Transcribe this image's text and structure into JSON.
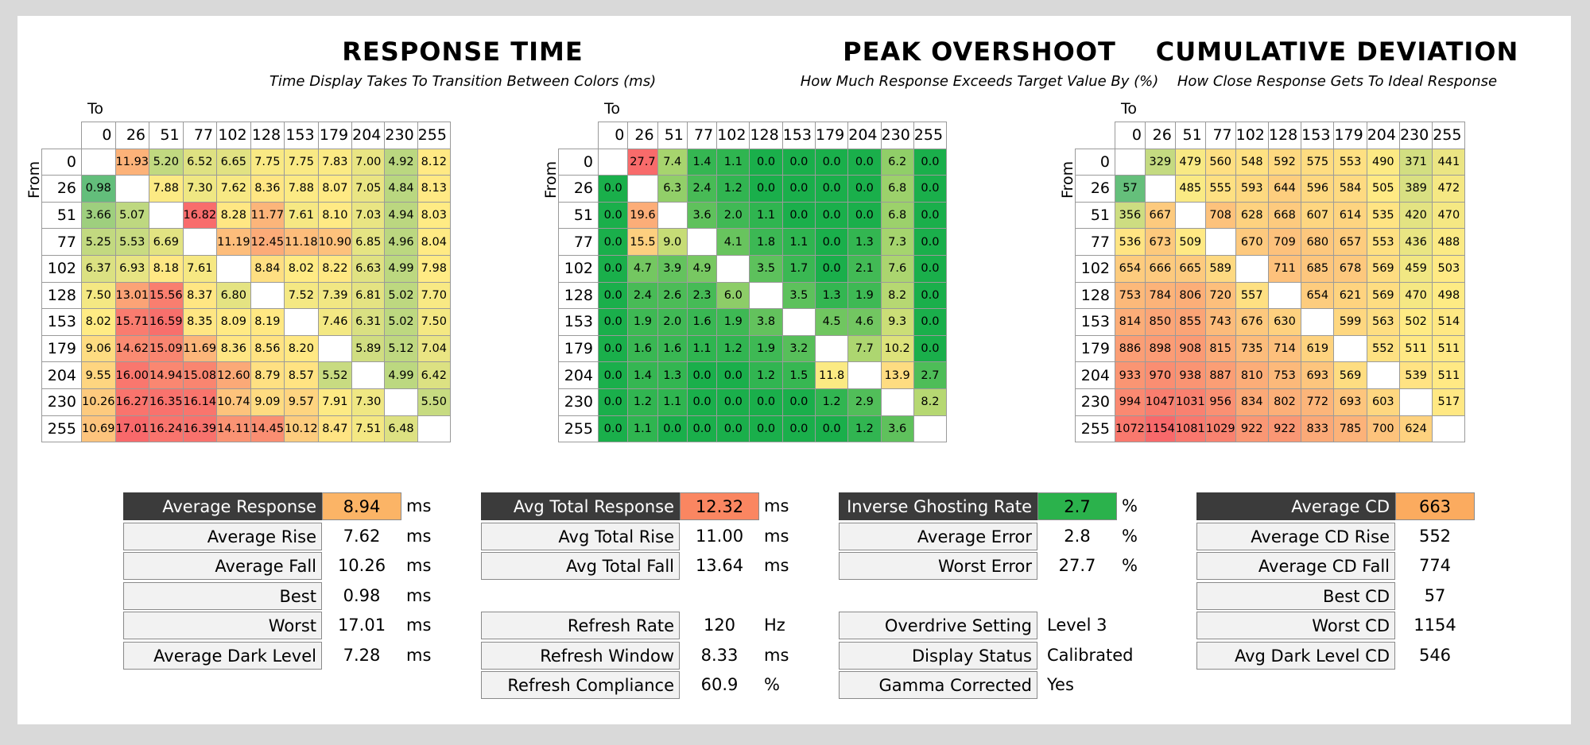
{
  "chart_data": [
    {
      "type": "heatmap",
      "title": "RESPONSE TIME",
      "subtitle": "Time Display Takes To Transition Between Colors (ms)",
      "xlabel": "To",
      "ylabel": "From",
      "levels": [
        "0",
        "26",
        "51",
        "77",
        "102",
        "128",
        "153",
        "179",
        "204",
        "230",
        "255"
      ],
      "values": [
        [
          null,
          "11.93",
          "5.20",
          "6.52",
          "6.65",
          "7.75",
          "7.75",
          "7.83",
          "7.00",
          "4.92",
          "8.12"
        ],
        [
          "0.98",
          null,
          "7.88",
          "7.30",
          "7.62",
          "8.36",
          "7.88",
          "8.07",
          "7.05",
          "4.84",
          "8.13"
        ],
        [
          "3.66",
          "5.07",
          null,
          "16.82",
          "8.28",
          "11.77",
          "7.61",
          "8.10",
          "7.03",
          "4.94",
          "8.03"
        ],
        [
          "5.25",
          "5.53",
          "6.69",
          null,
          "11.19",
          "12.45",
          "11.18",
          "10.90",
          "6.85",
          "4.96",
          "8.04"
        ],
        [
          "6.37",
          "6.93",
          "8.18",
          "7.61",
          null,
          "8.84",
          "8.02",
          "8.22",
          "6.63",
          "4.99",
          "7.98"
        ],
        [
          "7.50",
          "13.01",
          "15.56",
          "8.37",
          "6.80",
          null,
          "7.52",
          "7.39",
          "6.81",
          "5.02",
          "7.70"
        ],
        [
          "8.02",
          "15.71",
          "16.59",
          "8.35",
          "8.09",
          "8.19",
          null,
          "7.46",
          "6.31",
          "5.02",
          "7.50"
        ],
        [
          "9.06",
          "14.62",
          "15.09",
          "11.69",
          "8.36",
          "8.56",
          "8.20",
          null,
          "5.89",
          "5.12",
          "7.04"
        ],
        [
          "9.55",
          "16.00",
          "14.94",
          "15.08",
          "12.60",
          "8.79",
          "8.57",
          "5.52",
          null,
          "4.99",
          "6.42"
        ],
        [
          "10.26",
          "16.27",
          "16.35",
          "16.14",
          "10.74",
          "9.09",
          "9.57",
          "7.91",
          "7.30",
          null,
          "5.50"
        ],
        [
          "10.69",
          "17.01",
          "16.24",
          "16.39",
          "14.11",
          "14.45",
          "10.12",
          "8.47",
          "7.51",
          "6.48",
          null
        ]
      ],
      "color_scale": {
        "low": "#63be7b",
        "mid": "#ffeb84",
        "high": "#f8696b",
        "min": 1,
        "mid_value": 8,
        "max": 17
      }
    },
    {
      "type": "heatmap",
      "title": "PEAK OVERSHOOT",
      "subtitle": "How Much Response Exceeds Target Value By (%)",
      "xlabel": "To",
      "ylabel": "From",
      "levels": [
        "0",
        "26",
        "51",
        "77",
        "102",
        "128",
        "153",
        "179",
        "204",
        "230",
        "255"
      ],
      "values": [
        [
          null,
          "27.7",
          "7.4",
          "1.4",
          "1.1",
          "0.0",
          "0.0",
          "0.0",
          "0.0",
          "6.2",
          "0.0"
        ],
        [
          "0.0",
          null,
          "6.3",
          "2.4",
          "1.2",
          "0.0",
          "0.0",
          "0.0",
          "0.0",
          "6.8",
          "0.0"
        ],
        [
          "0.0",
          "19.6",
          null,
          "3.6",
          "2.0",
          "1.1",
          "0.0",
          "0.0",
          "0.0",
          "6.8",
          "0.0"
        ],
        [
          "0.0",
          "15.5",
          "9.0",
          null,
          "4.1",
          "1.8",
          "1.1",
          "0.0",
          "1.3",
          "7.3",
          "0.0"
        ],
        [
          "0.0",
          "4.7",
          "3.9",
          "4.9",
          null,
          "3.5",
          "1.7",
          "0.0",
          "2.1",
          "7.6",
          "0.0"
        ],
        [
          "0.0",
          "2.4",
          "2.6",
          "2.3",
          "6.0",
          null,
          "3.5",
          "1.3",
          "1.9",
          "8.2",
          "0.0"
        ],
        [
          "0.0",
          "1.9",
          "2.0",
          "1.6",
          "1.9",
          "3.8",
          null,
          "4.5",
          "4.6",
          "9.3",
          "0.0"
        ],
        [
          "0.0",
          "1.6",
          "1.6",
          "1.1",
          "1.2",
          "1.9",
          "3.2",
          null,
          "7.7",
          "10.2",
          "0.0"
        ],
        [
          "0.0",
          "1.4",
          "1.3",
          "0.0",
          "0.0",
          "1.2",
          "1.5",
          "11.8",
          null,
          "13.9",
          "2.7"
        ],
        [
          "0.0",
          "1.2",
          "1.1",
          "0.0",
          "0.0",
          "0.0",
          "0.0",
          "1.2",
          "2.9",
          null,
          "8.2"
        ],
        [
          "0.0",
          "1.1",
          "0.0",
          "0.0",
          "0.0",
          "0.0",
          "0.0",
          "0.0",
          "1.2",
          "3.6",
          null
        ]
      ],
      "color_scale": {
        "low": "#1aaf4b",
        "mid": "#ffeb84",
        "high": "#f8696b",
        "min": 0,
        "mid_value": 12,
        "max": 28
      }
    },
    {
      "type": "heatmap",
      "title": "CUMULATIVE DEVIATION",
      "subtitle": "How Close Response Gets To Ideal Response",
      "xlabel": "To",
      "ylabel": "From",
      "levels": [
        "0",
        "26",
        "51",
        "77",
        "102",
        "128",
        "153",
        "179",
        "204",
        "230",
        "255"
      ],
      "values": [
        [
          null,
          "329",
          "479",
          "560",
          "548",
          "592",
          "575",
          "553",
          "490",
          "371",
          "441"
        ],
        [
          "57",
          null,
          "485",
          "555",
          "593",
          "644",
          "596",
          "584",
          "505",
          "389",
          "472"
        ],
        [
          "356",
          "667",
          null,
          "708",
          "628",
          "668",
          "607",
          "614",
          "535",
          "420",
          "470"
        ],
        [
          "536",
          "673",
          "509",
          null,
          "670",
          "709",
          "680",
          "657",
          "553",
          "436",
          "488"
        ],
        [
          "654",
          "666",
          "665",
          "589",
          null,
          "711",
          "685",
          "678",
          "569",
          "459",
          "503"
        ],
        [
          "753",
          "784",
          "806",
          "720",
          "557",
          null,
          "654",
          "621",
          "569",
          "470",
          "498"
        ],
        [
          "814",
          "850",
          "855",
          "743",
          "676",
          "630",
          null,
          "599",
          "563",
          "502",
          "514"
        ],
        [
          "886",
          "898",
          "908",
          "815",
          "735",
          "714",
          "619",
          null,
          "552",
          "511",
          "511"
        ],
        [
          "933",
          "970",
          "938",
          "887",
          "810",
          "753",
          "693",
          "569",
          null,
          "539",
          "511"
        ],
        [
          "994",
          "1047",
          "1031",
          "956",
          "834",
          "802",
          "772",
          "693",
          "603",
          null,
          "517"
        ],
        [
          "1072",
          "1154",
          "1081",
          "1029",
          "922",
          "922",
          "833",
          "785",
          "700",
          "624",
          null
        ]
      ],
      "color_scale": {
        "low": "#63be7b",
        "mid": "#ffeb84",
        "high": "#f8696b",
        "min": 50,
        "mid_value": 500,
        "max": 1154
      }
    }
  ],
  "stats": {
    "response": {
      "rows": [
        {
          "label": "Average Response",
          "value": "8.94",
          "unit": "ms",
          "main": true,
          "color": "#fbb466"
        },
        {
          "label": "Average Rise",
          "value": "7.62",
          "unit": "ms"
        },
        {
          "label": "Average Fall",
          "value": "10.26",
          "unit": "ms"
        },
        {
          "label": "Best",
          "value": "0.98",
          "unit": "ms"
        },
        {
          "label": "Worst",
          "value": "17.01",
          "unit": "ms"
        },
        {
          "label": "Average Dark Level",
          "value": "7.28",
          "unit": "ms"
        }
      ]
    },
    "total": {
      "rows": [
        {
          "label": "Avg Total Response",
          "value": "12.32",
          "unit": "ms",
          "main": true,
          "color": "#fa8661"
        },
        {
          "label": "Avg Total Rise",
          "value": "11.00",
          "unit": "ms"
        },
        {
          "label": "Avg Total Fall",
          "value": "13.64",
          "unit": "ms"
        }
      ],
      "refresh_rows": [
        {
          "label": "Refresh Rate",
          "value": "120",
          "unit": "Hz"
        },
        {
          "label": "Refresh Window",
          "value": "8.33",
          "unit": "ms"
        },
        {
          "label": "Refresh Compliance",
          "value": "60.9",
          "unit": "%"
        }
      ]
    },
    "overshoot": {
      "rows": [
        {
          "label": "Inverse Ghosting Rate",
          "value": "2.7",
          "unit": "%",
          "main": true,
          "color": "#2bb24c"
        },
        {
          "label": "Average Error",
          "value": "2.8",
          "unit": "%"
        },
        {
          "label": "Worst Error",
          "value": "27.7",
          "unit": "%"
        }
      ],
      "settings_rows": [
        {
          "label": "Overdrive Setting",
          "value": "Level 3"
        },
        {
          "label": "Display Status",
          "value": "Calibrated"
        },
        {
          "label": "Gamma Corrected",
          "value": "Yes"
        }
      ]
    },
    "cd": {
      "rows": [
        {
          "label": "Average CD",
          "value": "663",
          "main": true,
          "color": "#fbab5f"
        },
        {
          "label": "Average CD Rise",
          "value": "552"
        },
        {
          "label": "Average CD Fall",
          "value": "774"
        },
        {
          "label": "Best CD",
          "value": "57"
        },
        {
          "label": "Worst CD",
          "value": "1154"
        },
        {
          "label": "Avg Dark Level CD",
          "value": "546"
        }
      ]
    }
  }
}
